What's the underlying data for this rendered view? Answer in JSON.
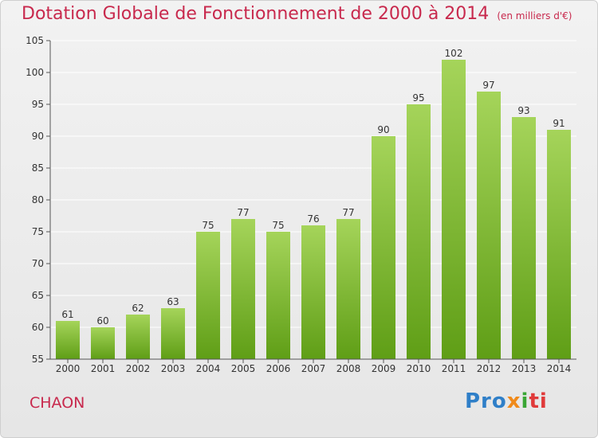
{
  "header": {
    "title": "Dotation Globale de Fonctionnement de 2000 à 2014",
    "unit": "(en milliers d'€)"
  },
  "footer": {
    "commune": "CHAON",
    "logo_text": "Proxiti",
    "logo_parts": [
      "Pro",
      "x",
      "i",
      "ti"
    ]
  },
  "colors": {
    "title": "#c8294d",
    "bar_top": "#a5d45a",
    "bar_bottom": "#5f9e16",
    "grid": "#ffffff"
  },
  "chart_data": {
    "type": "bar",
    "title": "Dotation Globale de Fonctionnement de 2000 à 2014",
    "xlabel": "",
    "ylabel": "",
    "categories": [
      "2000",
      "2001",
      "2002",
      "2003",
      "2004",
      "2005",
      "2006",
      "2007",
      "2008",
      "2009",
      "2010",
      "2011",
      "2012",
      "2013",
      "2014"
    ],
    "values": [
      61,
      60,
      62,
      63,
      75,
      77,
      75,
      76,
      77,
      90,
      95,
      102,
      97,
      93,
      91
    ],
    "ylim": [
      55,
      105
    ],
    "yticks": [
      55,
      60,
      65,
      70,
      75,
      80,
      85,
      90,
      95,
      100,
      105
    ],
    "grid": true,
    "legend": "none"
  }
}
